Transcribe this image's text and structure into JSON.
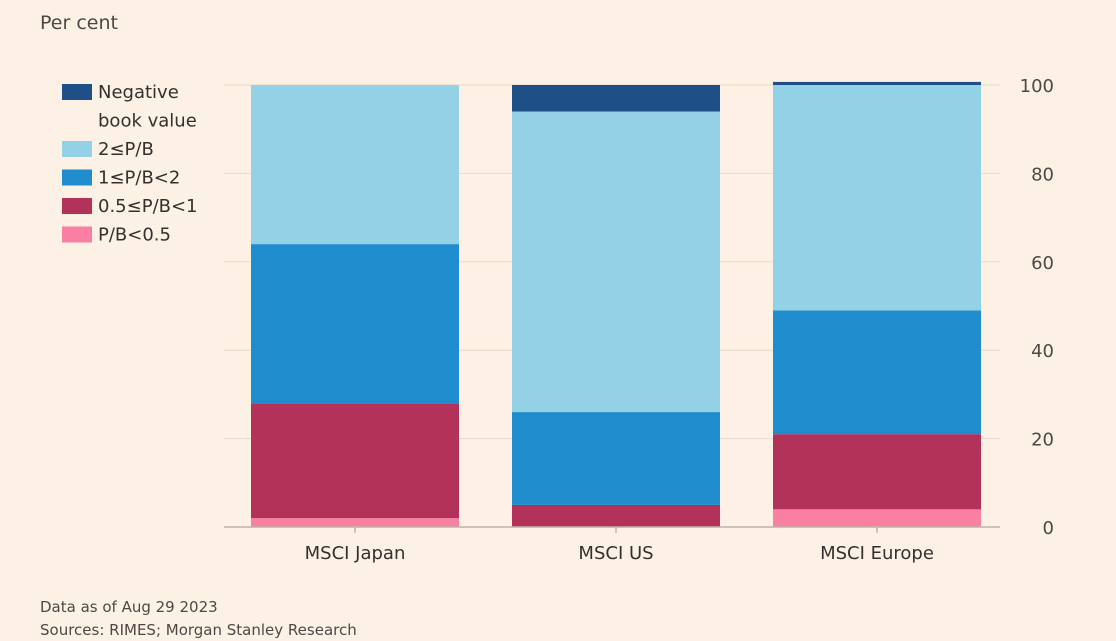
{
  "chart_data": {
    "type": "bar",
    "stacked": true,
    "unit_label": "Per cent",
    "categories": [
      "MSCI Japan",
      "MSCI US",
      "MSCI Europe"
    ],
    "ylim": [
      0,
      100
    ],
    "yticks": [
      0,
      20,
      40,
      60,
      80,
      100
    ],
    "grid": true,
    "legend_position": "top-left",
    "series": [
      {
        "name": "P/B<0.5",
        "color": "#f97fa3",
        "values": [
          2,
          0,
          4
        ]
      },
      {
        "name": "0.5≤P/B<1",
        "color": "#b3325a",
        "values": [
          26,
          5,
          17
        ]
      },
      {
        "name": "1≤P/B<2",
        "color": "#1f8dcd",
        "values": [
          36,
          21,
          28
        ]
      },
      {
        "name": "2≤P/B",
        "color": "#93d2e6",
        "values": [
          36,
          68,
          51
        ]
      },
      {
        "name": "Negative book value",
        "color": "#1e4f86",
        "values": [
          0,
          6,
          0.7
        ]
      }
    ],
    "legend": [
      {
        "lines": [
          "Negative",
          "book value"
        ],
        "color": "#1e4f86"
      },
      {
        "lines": [
          "2≤P/B"
        ],
        "color": "#93d2e6"
      },
      {
        "lines": [
          "1≤P/B<2"
        ],
        "color": "#1f8dcd"
      },
      {
        "lines": [
          "0.5≤P/B<1"
        ],
        "color": "#b3325a"
      },
      {
        "lines": [
          "P/B<0.5"
        ],
        "color": "#f97fa3"
      }
    ],
    "notes": [
      "Data as of Aug 29 2023",
      "Sources: RIMES; Morgan Stanley Research"
    ]
  }
}
